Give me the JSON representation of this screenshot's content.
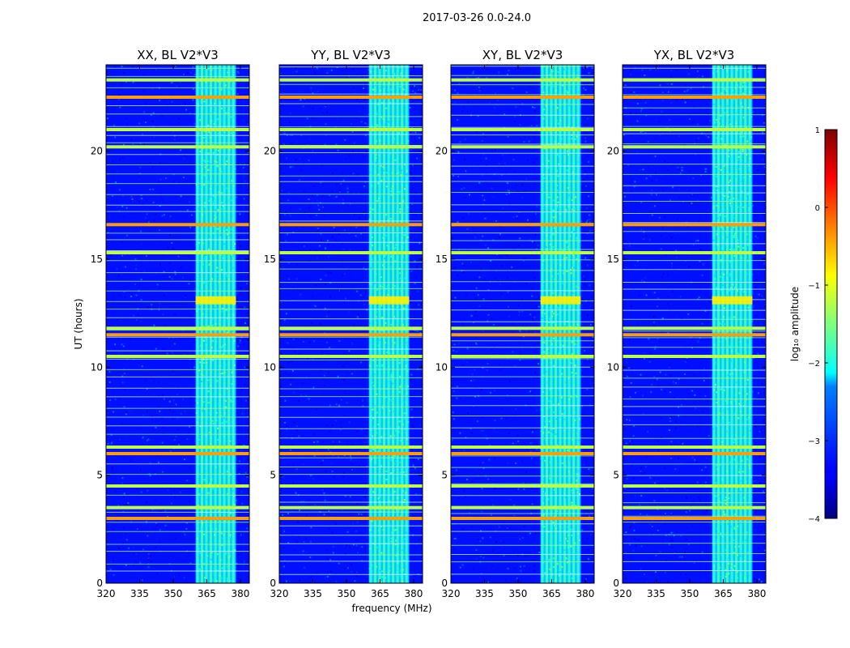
{
  "figure": {
    "suptitle": "2017-03-26 0.0-24.0",
    "xlabel": "frequency (MHz)",
    "ylabel": "UT (hours)",
    "colorbar_label": "log₁₀ amplitude",
    "colormap": "jet",
    "colorbar_ticks": [
      "1",
      "0",
      "−1",
      "−2",
      "−3",
      "−4"
    ],
    "x_ticks": [
      "320",
      "335",
      "350",
      "365",
      "380"
    ],
    "y_ticks": [
      "0",
      "5",
      "10",
      "15",
      "20"
    ]
  },
  "chart_data": [
    {
      "type": "heatmap",
      "title": "XX, BL V2*V3",
      "xlabel": "frequency (MHz)",
      "ylabel": "UT (hours)",
      "xlim": [
        320,
        384
      ],
      "ylim": [
        0,
        24
      ],
      "clim": [
        -4,
        1
      ],
      "background_level": -3.3,
      "band_range_mhz": [
        360,
        378
      ],
      "band_level": -1.9,
      "rfi_lines_hours": [
        3.0,
        3.5,
        4.5,
        6.0,
        6.3,
        10.5,
        11.5,
        11.8,
        15.3,
        16.6,
        20.2,
        21.0,
        22.5,
        23.3
      ],
      "hotspot_hours": 13.1
    },
    {
      "type": "heatmap",
      "title": "YY, BL V2*V3",
      "xlabel": "frequency (MHz)",
      "ylabel": "UT (hours)",
      "xlim": [
        320,
        384
      ],
      "ylim": [
        0,
        24
      ],
      "clim": [
        -4,
        1
      ],
      "background_level": -3.3,
      "band_range_mhz": [
        360,
        378
      ],
      "band_level": -1.9,
      "rfi_lines_hours": [
        3.0,
        3.5,
        4.5,
        6.0,
        6.3,
        10.5,
        11.5,
        11.8,
        15.3,
        16.6,
        20.2,
        21.0,
        22.5,
        23.3
      ],
      "hotspot_hours": 13.1
    },
    {
      "type": "heatmap",
      "title": "XY, BL V2*V3",
      "xlabel": "frequency (MHz)",
      "ylabel": "UT (hours)",
      "xlim": [
        320,
        384
      ],
      "ylim": [
        0,
        24
      ],
      "clim": [
        -4,
        1
      ],
      "background_level": -3.3,
      "band_range_mhz": [
        360,
        378
      ],
      "band_level": -1.9,
      "rfi_lines_hours": [
        3.0,
        3.5,
        4.5,
        6.0,
        6.3,
        10.5,
        11.5,
        11.8,
        15.3,
        16.6,
        20.2,
        21.0,
        22.5,
        23.3
      ],
      "hotspot_hours": 13.1
    },
    {
      "type": "heatmap",
      "title": "YX, BL V2*V3",
      "xlabel": "frequency (MHz)",
      "ylabel": "UT (hours)",
      "xlim": [
        320,
        384
      ],
      "ylim": [
        0,
        24
      ],
      "clim": [
        -4,
        1
      ],
      "background_level": -3.3,
      "band_range_mhz": [
        360,
        378
      ],
      "band_level": -1.9,
      "rfi_lines_hours": [
        3.0,
        3.5,
        4.5,
        6.0,
        6.3,
        10.5,
        11.5,
        11.8,
        15.3,
        16.6,
        20.2,
        21.0,
        22.5,
        23.3
      ],
      "hotspot_hours": 13.1
    }
  ]
}
